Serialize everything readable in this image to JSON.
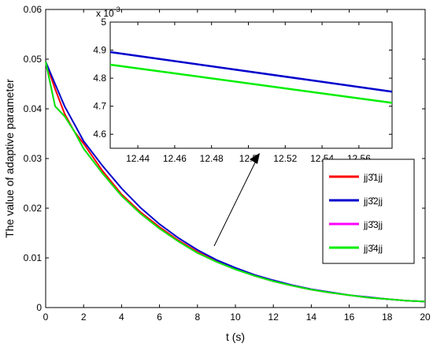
{
  "chart_data": [
    {
      "type": "line",
      "xlabel": "t (s)",
      "ylabel": "The value of adaptive parameter",
      "xlim": [
        0,
        20
      ],
      "ylim": [
        0,
        0.06
      ],
      "x_ticks": [
        0,
        2,
        4,
        6,
        8,
        10,
        12,
        14,
        16,
        18,
        20
      ],
      "y_ticks": [
        0,
        0.01,
        0.02,
        0.03,
        0.04,
        0.05,
        0.06
      ],
      "x_tick_labels": [
        "0",
        "2",
        "4",
        "6",
        "8",
        "10",
        "12",
        "14",
        "16",
        "18",
        "20"
      ],
      "y_tick_labels": [
        "0",
        "0.01",
        "0.02",
        "0.03",
        "0.04",
        "0.05",
        "0.06"
      ],
      "grid": false,
      "legend": {
        "placement": "right",
        "entries": [
          {
            "label": "jj3̂1jj",
            "color": "#ff0000"
          },
          {
            "label": "jj3̂2jj",
            "color": "#0000cc"
          },
          {
            "label": "jj3̂3jj",
            "color": "#ff00ff"
          },
          {
            "label": "jj3̂4jj",
            "color": "#00ee00"
          }
        ]
      },
      "series": [
        {
          "color": "#ff0000",
          "x": [
            0,
            0.5,
            1,
            1.5,
            2,
            3,
            4,
            5,
            6,
            7,
            8,
            9,
            10,
            11,
            12,
            13,
            14,
            15,
            16,
            17,
            18,
            19,
            20
          ],
          "y": [
            0.0495,
            0.044,
            0.039,
            0.0355,
            0.033,
            0.0275,
            0.0228,
            0.0192,
            0.0162,
            0.0135,
            0.0112,
            0.0093,
            0.0078,
            0.0064,
            0.0053,
            0.0044,
            0.0036,
            0.003,
            0.0025,
            0.002,
            0.0017,
            0.0014,
            0.0012
          ]
        },
        {
          "color": "#0000cc",
          "x": [
            0,
            0.5,
            1,
            1.5,
            2,
            3,
            4,
            5,
            6,
            7,
            8,
            9,
            10,
            11,
            12,
            13,
            14,
            15,
            16,
            17,
            18,
            19,
            20
          ],
          "y": [
            0.0495,
            0.045,
            0.0405,
            0.037,
            0.0335,
            0.0285,
            0.024,
            0.0201,
            0.0168,
            0.014,
            0.0116,
            0.0096,
            0.008,
            0.0066,
            0.0055,
            0.0045,
            0.0037,
            0.0031,
            0.0025,
            0.0021,
            0.0017,
            0.0014,
            0.0012
          ]
        },
        {
          "color": "#ff00ff",
          "x": [
            0,
            0.5,
            1,
            1.5,
            2,
            3,
            4,
            5,
            6,
            7,
            8,
            9,
            10,
            11,
            12,
            13,
            14,
            15,
            16,
            17,
            18,
            19,
            20
          ],
          "y": [
            0.0495,
            0.0405,
            0.0385,
            0.0355,
            0.032,
            0.027,
            0.0225,
            0.0189,
            0.0159,
            0.0133,
            0.011,
            0.0092,
            0.0077,
            0.0064,
            0.0053,
            0.0044,
            0.0036,
            0.003,
            0.0025,
            0.002,
            0.0017,
            0.0014,
            0.0012
          ]
        },
        {
          "color": "#00ee00",
          "x": [
            0,
            0.5,
            1,
            1.5,
            2,
            3,
            4,
            5,
            6,
            7,
            8,
            9,
            10,
            11,
            12,
            13,
            14,
            15,
            16,
            17,
            18,
            19,
            20
          ],
          "y": [
            0.0495,
            0.0405,
            0.0385,
            0.0355,
            0.032,
            0.027,
            0.0225,
            0.0189,
            0.0159,
            0.0133,
            0.011,
            0.0092,
            0.0077,
            0.0064,
            0.0053,
            0.0044,
            0.0036,
            0.003,
            0.0025,
            0.002,
            0.0017,
            0.0014,
            0.0012
          ]
        }
      ]
    },
    {
      "type": "line",
      "xlabel": "",
      "ylabel": "",
      "xlim": [
        12.425,
        12.578
      ],
      "ylim": [
        4.55,
        5.0
      ],
      "y_scale_label": "x 10",
      "y_scale_exponent": "-3",
      "x_ticks": [
        12.44,
        12.46,
        12.48,
        12.5,
        12.52,
        12.54,
        12.56
      ],
      "y_ticks": [
        4.6,
        4.7,
        4.8,
        4.9,
        5.0
      ],
      "x_tick_labels": [
        "12.44",
        "12.46",
        "12.48",
        "12.5",
        "12.52",
        "12.54",
        "12.56"
      ],
      "y_tick_labels": [
        "4.6",
        "4.7",
        "4.8",
        "4.9",
        "5"
      ],
      "grid": false,
      "series": [
        {
          "color": "#0000cc",
          "x": [
            12.425,
            12.578
          ],
          "y": [
            4.893,
            4.752
          ]
        },
        {
          "color": "#00ee00",
          "x": [
            12.425,
            12.578
          ],
          "y": [
            4.848,
            4.712
          ]
        }
      ]
    }
  ]
}
